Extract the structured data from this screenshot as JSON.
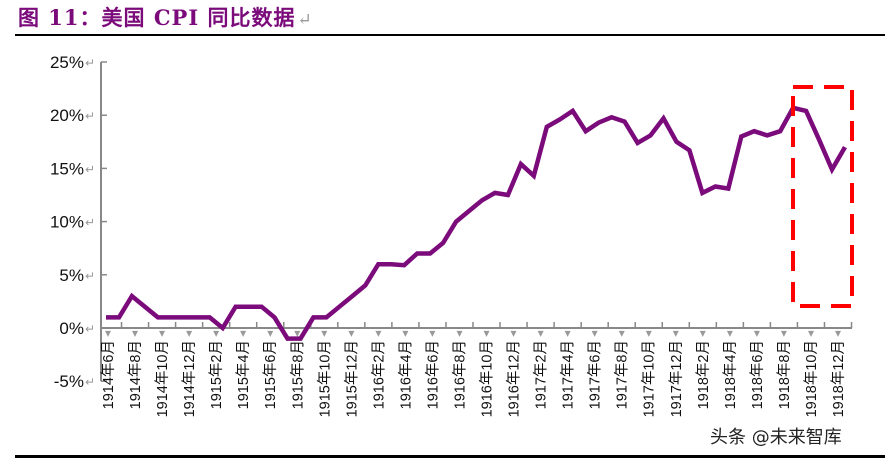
{
  "title": {
    "text": "图 11：美国 CPI 同比数据",
    "return_mark": "↵"
  },
  "watermark": "头条 @未来智库",
  "colors": {
    "line": "#7b0a7b",
    "highlight_box": "#ff0000",
    "axis": "#888888",
    "title": "#7b0a7b"
  },
  "chart_data": {
    "type": "line",
    "title": "美国 CPI 同比数据",
    "xlabel": "",
    "ylabel": "",
    "ylim": [
      -5,
      25
    ],
    "yticks": [
      "-5%",
      "0%",
      "5%",
      "10%",
      "15%",
      "20%",
      "25%"
    ],
    "ytick_values": [
      -5,
      0,
      5,
      10,
      15,
      20,
      25
    ],
    "grid": false,
    "legend": null,
    "x_tick_labels": [
      "1914年6月",
      "1914年8月",
      "1914年10月",
      "1914年12月",
      "1915年2月",
      "1915年4月",
      "1915年6月",
      "1915年8月",
      "1915年10月",
      "1915年12月",
      "1916年2月",
      "1916年4月",
      "1916年6月",
      "1916年8月",
      "1916年10月",
      "1916年12月",
      "1917年2月",
      "1917年4月",
      "1917年6月",
      "1917年8月",
      "1917年10月",
      "1917年12月",
      "1918年2月",
      "1918年4月",
      "1918年6月",
      "1918年8月",
      "1918年10月",
      "1918年12月"
    ],
    "series": [
      {
        "name": "美国 CPI 同比",
        "values": [
          1,
          1,
          3,
          2,
          1,
          1,
          1,
          1,
          1,
          0,
          2,
          2,
          2,
          1,
          -1,
          -1,
          1,
          1,
          2,
          3,
          4,
          6,
          6,
          5.9,
          7,
          7,
          8,
          10,
          11,
          12,
          12.7,
          12.5,
          15.4,
          14.3,
          18.9,
          19.6,
          20.4,
          18.5,
          19.3,
          19.8,
          19.4,
          17.4,
          18.1,
          19.7,
          17.5,
          16.7,
          12.7,
          13.3,
          13.1,
          18,
          18.5,
          18.1,
          18.5,
          20.7,
          20.4,
          17.7,
          14.9,
          17.0
        ]
      }
    ],
    "annotations": [
      {
        "type": "dashed-rectangle",
        "color": "#ff0000",
        "covers": "1918年9月 – 1918年12月 (end of series)"
      }
    ]
  }
}
